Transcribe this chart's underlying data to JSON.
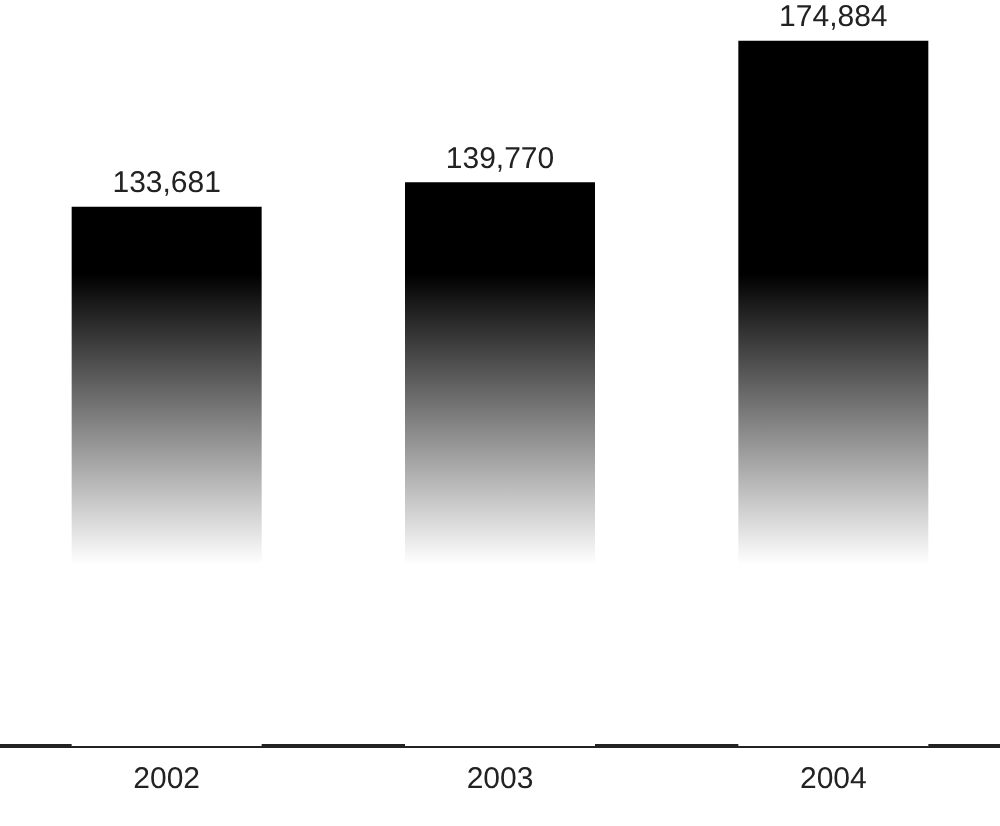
{
  "chart_data": {
    "type": "bar",
    "categories": [
      "2002",
      "2003",
      "2004"
    ],
    "values": [
      133681,
      139770,
      174884
    ],
    "value_labels": [
      "133,681",
      "139,770",
      "174,884"
    ],
    "color": "#000000",
    "grid": false,
    "legend": false,
    "tick_labels": "x"
  }
}
